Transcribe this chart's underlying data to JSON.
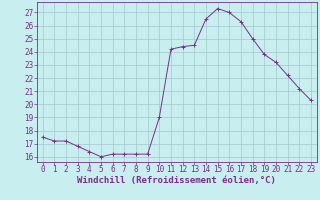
{
  "x": [
    0,
    1,
    2,
    3,
    4,
    5,
    6,
    7,
    8,
    9,
    10,
    11,
    12,
    13,
    14,
    15,
    16,
    17,
    18,
    19,
    20,
    21,
    22,
    23
  ],
  "y": [
    17.5,
    17.2,
    17.2,
    16.8,
    16.4,
    16.0,
    16.2,
    16.2,
    16.2,
    16.2,
    19.0,
    24.2,
    24.4,
    24.5,
    26.5,
    27.3,
    27.0,
    26.3,
    25.0,
    23.8,
    23.2,
    22.2,
    21.2,
    20.3
  ],
  "line_color": "#7b2d8b",
  "marker": "+",
  "marker_color": "#7b2d8b",
  "bg_color": "#c8eef0",
  "grid_color": "#a0c8cc",
  "xlabel": "Windchill (Refroidissement éolien,°C)",
  "ylabel_ticks": [
    16,
    17,
    18,
    19,
    20,
    21,
    22,
    23,
    24,
    25,
    26,
    27
  ],
  "xlim": [
    -0.5,
    23.5
  ],
  "ylim": [
    15.6,
    27.8
  ],
  "tick_color": "#7b2d8b",
  "label_color": "#7b2d8b",
  "axis_color": "#7b2d8b",
  "xlabel_fontsize": 6.5,
  "tick_fontsize": 5.5
}
